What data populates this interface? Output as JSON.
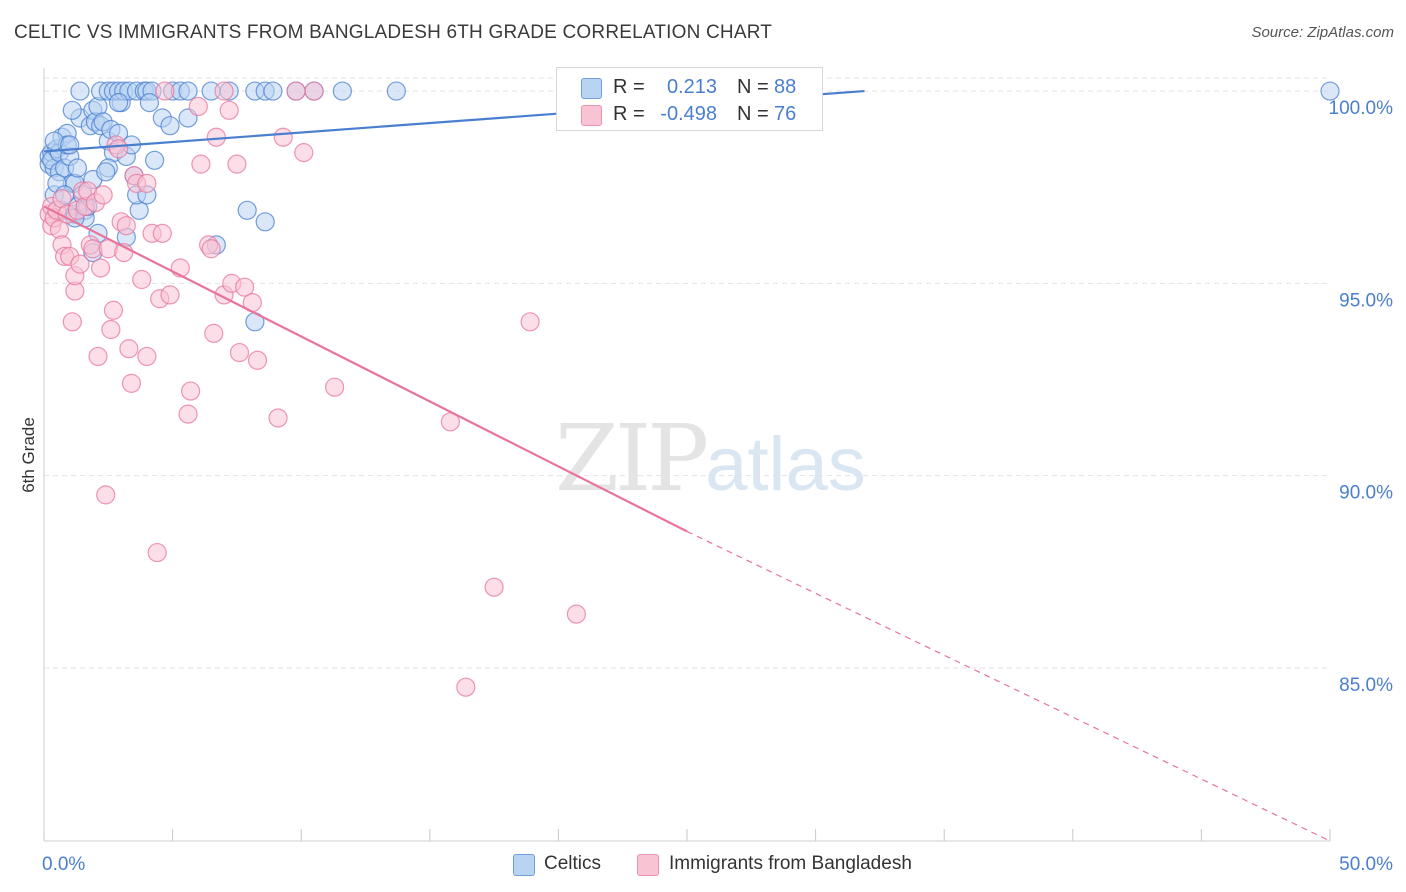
{
  "title": "CELTIC VS IMMIGRANTS FROM BANGLADESH 6TH GRADE CORRELATION CHART",
  "source": "Source: ZipAtlas.com",
  "watermark": {
    "zip": "ZIP",
    "atlas": "atlas"
  },
  "stats": [
    {
      "r_label": "R =",
      "r_value": "0.213",
      "n_label": "N =",
      "n_value": "88",
      "color": "#4a7fd0",
      "swatch_fill": "#b9d3f3",
      "swatch_stroke": "#6f9fdc"
    },
    {
      "r_label": "R =",
      "r_value": "-0.498",
      "n_label": "N =",
      "n_value": "76",
      "color": "#4a7fd0",
      "swatch_fill": "#f8c3d3",
      "swatch_stroke": "#ec93b0"
    }
  ],
  "legend": [
    {
      "label": "Celtics",
      "fill": "#b9d3f3",
      "stroke": "#6f9fdc"
    },
    {
      "label": "Immigrants from Bangladesh",
      "fill": "#f8c3d3",
      "stroke": "#ec93b0"
    }
  ],
  "chart_data": {
    "type": "scatter",
    "title": "CELTIC VS IMMIGRANTS FROM BANGLADESH 6TH GRADE CORRELATION CHART",
    "xlabel": "",
    "ylabel": "6th Grade",
    "xlim": [
      0,
      50
    ],
    "ylim": [
      80.5,
      100.6
    ],
    "x_tick_labels": [
      "0.0%",
      "50.0%"
    ],
    "y_ticks": [
      100,
      95,
      90,
      85
    ],
    "y_tick_labels": [
      "100.0%",
      "95.0%",
      "90.0%",
      "85.0%"
    ],
    "grid": true,
    "series": [
      {
        "name": "Celtics",
        "color": "#4a7fd0",
        "fill": "#b9d3f3",
        "trend": {
          "x0": 0,
          "y0": 98.43,
          "x1": 31.9,
          "y1": 100.0,
          "dashed_to": null
        },
        "points": [
          [
            0.2,
            98.1
          ],
          [
            0.2,
            98.3
          ],
          [
            0.3,
            98.4
          ],
          [
            0.4,
            98.0
          ],
          [
            0.3,
            98.2
          ],
          [
            0.5,
            98.5
          ],
          [
            0.4,
            97.3
          ],
          [
            0.6,
            97.9
          ],
          [
            0.6,
            98.4
          ],
          [
            0.7,
            98.8
          ],
          [
            0.8,
            98.0
          ],
          [
            0.9,
            98.9
          ],
          [
            1.0,
            98.3
          ],
          [
            0.9,
            98.6
          ],
          [
            0.7,
            96.9
          ],
          [
            1.1,
            97.6
          ],
          [
            1.2,
            96.8
          ],
          [
            1.2,
            97.6
          ],
          [
            1.3,
            98.0
          ],
          [
            1.3,
            97.0
          ],
          [
            1.4,
            99.3
          ],
          [
            1.5,
            97.3
          ],
          [
            1.6,
            96.9
          ],
          [
            1.8,
            99.1
          ],
          [
            1.9,
            99.5
          ],
          [
            2.0,
            99.2
          ],
          [
            2.1,
            99.6
          ],
          [
            2.2,
            99.1
          ],
          [
            2.3,
            99.2
          ],
          [
            2.5,
            98.7
          ],
          [
            2.6,
            99.0
          ],
          [
            2.7,
            98.4
          ],
          [
            2.5,
            98.0
          ],
          [
            3.0,
            99.7
          ],
          [
            3.2,
            98.3
          ],
          [
            3.5,
            97.8
          ],
          [
            1.9,
            95.8
          ],
          [
            3.2,
            96.2
          ],
          [
            3.7,
            96.9
          ],
          [
            4.3,
            98.2
          ],
          [
            4.6,
            99.3
          ],
          [
            4.9,
            99.1
          ],
          [
            5.6,
            99.3
          ],
          [
            6.7,
            96.0
          ],
          [
            7.9,
            96.9
          ],
          [
            8.6,
            96.6
          ],
          [
            8.2,
            94.0
          ],
          [
            1.4,
            100.0
          ],
          [
            2.2,
            100.0
          ],
          [
            2.5,
            100.0
          ],
          [
            2.7,
            100.0
          ],
          [
            2.9,
            100.0
          ],
          [
            3.1,
            100.0
          ],
          [
            3.3,
            100.0
          ],
          [
            3.6,
            100.0
          ],
          [
            3.9,
            100.0
          ],
          [
            4.0,
            100.0
          ],
          [
            4.2,
            100.0
          ],
          [
            5.0,
            100.0
          ],
          [
            5.3,
            100.0
          ],
          [
            5.6,
            100.0
          ],
          [
            6.5,
            100.0
          ],
          [
            7.2,
            100.0
          ],
          [
            8.2,
            100.0
          ],
          [
            8.6,
            100.0
          ],
          [
            8.9,
            100.0
          ],
          [
            9.8,
            100.0
          ],
          [
            10.5,
            100.0
          ],
          [
            11.6,
            100.0
          ],
          [
            13.7,
            100.0
          ],
          [
            50.0,
            100.0
          ],
          [
            4.1,
            99.7
          ],
          [
            2.9,
            99.7
          ],
          [
            1.1,
            99.5
          ],
          [
            1.6,
            96.7
          ],
          [
            2.1,
            96.3
          ],
          [
            0.5,
            97.6
          ],
          [
            3.6,
            97.3
          ],
          [
            4.0,
            97.3
          ],
          [
            1.9,
            97.7
          ],
          [
            2.4,
            97.9
          ],
          [
            2.9,
            98.9
          ],
          [
            0.4,
            98.7
          ],
          [
            1.0,
            98.6
          ],
          [
            3.4,
            98.6
          ],
          [
            1.7,
            97.0
          ],
          [
            1.2,
            96.7
          ],
          [
            0.8,
            97.3
          ]
        ]
      },
      {
        "name": "Immigrants from Bangladesh",
        "color": "#e8749c",
        "fill": "#f8c3d3",
        "trend": {
          "x0": 0,
          "y0": 97.0,
          "x1": 25.0,
          "y1": 88.55,
          "dashed_to": [
            50,
            80.5
          ]
        },
        "points": [
          [
            0.2,
            96.8
          ],
          [
            0.3,
            96.5
          ],
          [
            0.3,
            97.0
          ],
          [
            0.4,
            96.7
          ],
          [
            0.5,
            96.9
          ],
          [
            0.6,
            96.4
          ],
          [
            0.7,
            97.2
          ],
          [
            0.7,
            96.0
          ],
          [
            0.8,
            95.7
          ],
          [
            0.9,
            96.8
          ],
          [
            1.0,
            95.7
          ],
          [
            1.1,
            94.0
          ],
          [
            1.2,
            94.8
          ],
          [
            1.2,
            95.2
          ],
          [
            1.3,
            96.9
          ],
          [
            1.4,
            95.5
          ],
          [
            1.5,
            97.4
          ],
          [
            1.6,
            97.0
          ],
          [
            1.7,
            97.4
          ],
          [
            1.8,
            96.0
          ],
          [
            1.9,
            95.9
          ],
          [
            2.0,
            97.1
          ],
          [
            2.1,
            93.1
          ],
          [
            2.2,
            95.4
          ],
          [
            2.3,
            97.3
          ],
          [
            2.5,
            95.9
          ],
          [
            2.6,
            93.8
          ],
          [
            2.7,
            94.3
          ],
          [
            2.8,
            98.6
          ],
          [
            2.9,
            98.5
          ],
          [
            3.0,
            96.6
          ],
          [
            3.1,
            95.8
          ],
          [
            3.2,
            96.5
          ],
          [
            3.3,
            93.3
          ],
          [
            3.4,
            92.4
          ],
          [
            3.5,
            97.8
          ],
          [
            3.6,
            97.6
          ],
          [
            3.8,
            95.1
          ],
          [
            4.0,
            93.1
          ],
          [
            4.2,
            96.3
          ],
          [
            4.4,
            88.0
          ],
          [
            4.5,
            94.6
          ],
          [
            4.6,
            96.3
          ],
          [
            4.9,
            94.7
          ],
          [
            5.3,
            95.4
          ],
          [
            5.6,
            91.6
          ],
          [
            5.7,
            92.2
          ],
          [
            6.1,
            98.1
          ],
          [
            6.4,
            96.0
          ],
          [
            6.6,
            93.7
          ],
          [
            7.0,
            94.7
          ],
          [
            7.3,
            95.0
          ],
          [
            7.5,
            98.1
          ],
          [
            7.6,
            93.2
          ],
          [
            7.8,
            94.9
          ],
          [
            8.1,
            94.5
          ],
          [
            8.3,
            93.0
          ],
          [
            9.1,
            91.5
          ],
          [
            9.3,
            98.8
          ],
          [
            10.1,
            98.4
          ],
          [
            11.3,
            92.3
          ],
          [
            15.8,
            91.4
          ],
          [
            17.5,
            87.1
          ],
          [
            18.9,
            94.0
          ],
          [
            20.7,
            86.4
          ],
          [
            16.4,
            84.5
          ],
          [
            2.4,
            89.5
          ],
          [
            6.0,
            99.6
          ],
          [
            7.2,
            99.5
          ],
          [
            10.5,
            100.0
          ],
          [
            4.7,
            100.0
          ],
          [
            7.0,
            100.0
          ],
          [
            9.8,
            100.0
          ],
          [
            6.5,
            95.9
          ],
          [
            4.0,
            97.6
          ],
          [
            6.7,
            98.8
          ]
        ]
      }
    ]
  }
}
